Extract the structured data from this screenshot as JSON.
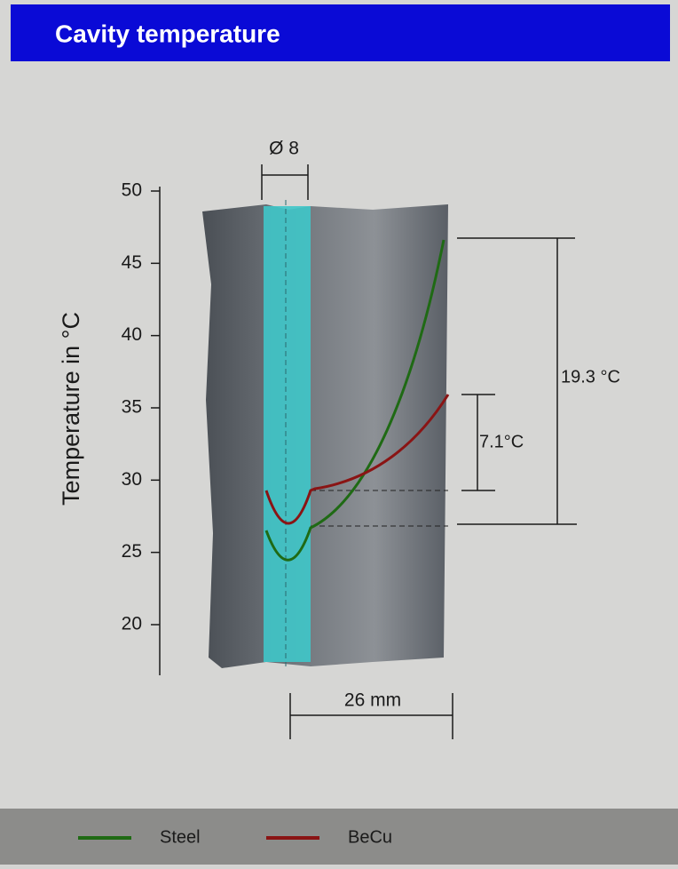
{
  "header": {
    "title": "Cavity temperature"
  },
  "y_axis": {
    "label": "Temperature in °C",
    "ticks": [
      20,
      25,
      30,
      35,
      40,
      45,
      50
    ]
  },
  "dimensions": {
    "diameter": "Ø 8",
    "steel_rise": "19.3 °C",
    "becu_rise": "7.1°C",
    "distance": "26 mm"
  },
  "legend": [
    {
      "name": "Steel",
      "color": "#1f6a14"
    },
    {
      "name": "BeCu",
      "color": "#8a1414"
    }
  ]
}
